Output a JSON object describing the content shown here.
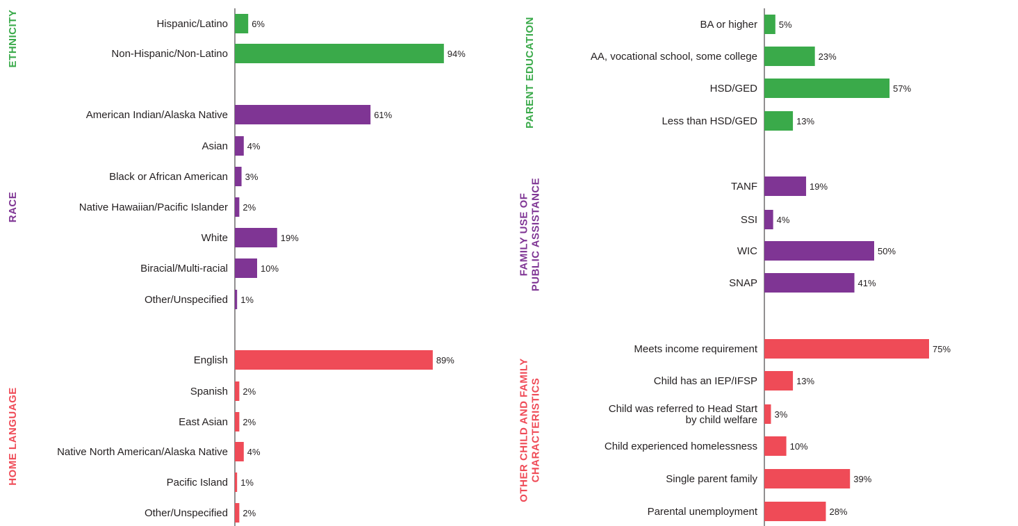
{
  "chart_data": [
    {
      "type": "bar",
      "orientation": "horizontal",
      "xlim": [
        0,
        100
      ],
      "unit": "%",
      "groups": [
        {
          "title": "ETHNICITY",
          "color": "#3aaa4a",
          "categories": [
            "Hispanic/Latino",
            "Non-Hispanic/Non-Latino"
          ],
          "values": [
            6,
            94
          ],
          "value_labels": [
            "6%",
            "94%"
          ]
        },
        {
          "title": "RACE",
          "color": "#7f3594",
          "categories": [
            "American Indian/Alaska Native",
            "Asian",
            "Black or African American",
            "Native Hawaiian/Pacific Islander",
            "White",
            "Biracial/Multi-racial",
            "Other/Unspecified"
          ],
          "values": [
            61,
            4,
            3,
            2,
            19,
            10,
            1
          ],
          "value_labels": [
            "61%",
            "4%",
            "3%",
            "2%",
            "19%",
            "10%",
            "1%"
          ]
        },
        {
          "title": "HOME LANGUAGE",
          "color": "#ef4b57",
          "categories": [
            "English",
            "Spanish",
            "East Asian",
            "Native North American/Alaska Native",
            "Pacific Island",
            "Other/Unspecified"
          ],
          "values": [
            89,
            2,
            2,
            4,
            1,
            2
          ],
          "value_labels": [
            "89%",
            "2%",
            "2%",
            "4%",
            "1%",
            "2%"
          ]
        }
      ]
    },
    {
      "type": "bar",
      "orientation": "horizontal",
      "xlim": [
        0,
        100
      ],
      "unit": "%",
      "groups": [
        {
          "title": "PARENT EDUCATION",
          "color": "#3aaa4a",
          "categories": [
            "BA or higher",
            "AA, vocational school, some college",
            "HSD/GED",
            "Less than HSD/GED"
          ],
          "values": [
            5,
            23,
            57,
            13
          ],
          "value_labels": [
            "5%",
            "23%",
            "57%",
            "13%"
          ]
        },
        {
          "title": "FAMILY USE OF PUBLIC ASSISTANCE",
          "title_lines": [
            "FAMILY USE OF",
            "PUBLIC ASSISTANCE"
          ],
          "color": "#7f3594",
          "categories": [
            "TANF",
            "SSI",
            "WIC",
            "SNAP"
          ],
          "values": [
            19,
            4,
            50,
            41
          ],
          "value_labels": [
            "19%",
            "4%",
            "50%",
            "41%"
          ]
        },
        {
          "title": "OTHER CHILD AND FAMILY CHARACTERISTICS",
          "title_lines": [
            "OTHER CHILD AND FAMILY",
            "CHARACTERISTICS"
          ],
          "color": "#ef4b57",
          "categories": [
            "Meets income requirement",
            "Child has an IEP/IFSP",
            "Child was referred to Head Start by child welfare",
            "Child experienced homelessness",
            "Single parent family",
            "Parental unemployment"
          ],
          "category_lines": [
            [
              "Meets income requirement"
            ],
            [
              "Child has an IEP/IFSP"
            ],
            [
              "Child was referred to Head Start",
              "by child welfare"
            ],
            [
              "Child experienced homelessness"
            ],
            [
              "Single parent family"
            ],
            [
              "Parental unemployment"
            ]
          ],
          "values": [
            75,
            13,
            3,
            10,
            39,
            28
          ],
          "value_labels": [
            "75%",
            "13%",
            "3%",
            "10%",
            "39%",
            "28%"
          ]
        }
      ]
    }
  ]
}
